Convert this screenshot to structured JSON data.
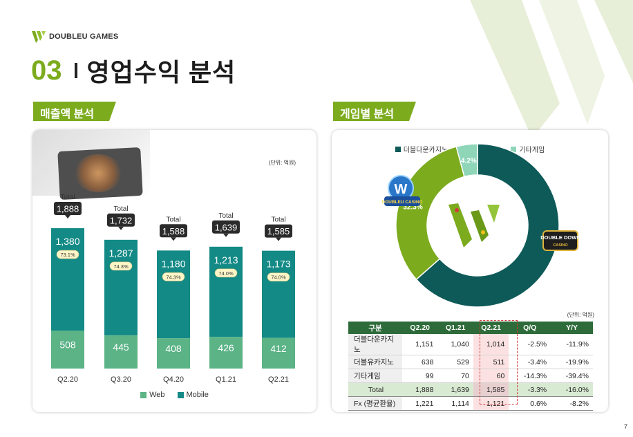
{
  "brand": {
    "name": "DOUBLEU GAMES"
  },
  "title": {
    "number": "03",
    "text": "영업수익 분석"
  },
  "left_section": {
    "tag": "매출액 분석",
    "unit": "(단위: 억원)",
    "total_label": "Total"
  },
  "right_section": {
    "tag": "게임별 분석",
    "unit": "(단위: 억원)"
  },
  "colors": {
    "accent": "#7cab1e",
    "mobile": "#138a86",
    "web": "#5bb386",
    "total_box": "#2b2b2b",
    "doubledown": "#0e5a58",
    "doubleu": "#7cab1e",
    "other": "#8fd6b9",
    "table_header": "#2e6b3a"
  },
  "chart_data": [
    {
      "type": "bar",
      "stacked": true,
      "categories": [
        "Q2.20",
        "Q3.20",
        "Q4.20",
        "Q1.21",
        "Q2.21"
      ],
      "series": [
        {
          "name": "Web",
          "values": [
            508,
            445,
            408,
            426,
            412
          ]
        },
        {
          "name": "Mobile",
          "values": [
            1380,
            1287,
            1180,
            1213,
            1173
          ]
        }
      ],
      "totals": [
        1888,
        1732,
        1588,
        1639,
        1585
      ],
      "total_labels": [
        "1,888",
        "1,732",
        "1,588",
        "1,639",
        "1,585"
      ],
      "mobile_labels": [
        "1,380",
        "1,287",
        "1,180",
        "1,213",
        "1,173"
      ],
      "web_labels": [
        "508",
        "445",
        "408",
        "426",
        "412"
      ],
      "mobile_share": [
        "73.1%",
        "74.3%",
        "74.3%",
        "74.0%",
        "74.0%"
      ],
      "legend": [
        "Web",
        "Mobile"
      ],
      "legend_position": "bottom",
      "grid": false
    },
    {
      "type": "pie",
      "donut": true,
      "labels": [
        "더블다운카지노",
        "더블유카지노",
        "기타게임"
      ],
      "values": [
        63.5,
        32.3,
        4.2
      ],
      "value_labels": [
        "63.5%",
        "32.3%",
        "4.2%"
      ],
      "legend_position": "top"
    }
  ],
  "logos": {
    "doubleu_casino": "DOUBLEU CASINO",
    "doubledown_casino": "DOUBLE DOWN CASINO"
  },
  "table": {
    "headers": [
      "구분",
      "Q2.20",
      "Q1.21",
      "Q2.21",
      "Q/Q",
      "Y/Y"
    ],
    "rows": [
      [
        "더블다운카지노",
        "1,151",
        "1,040",
        "1,014",
        "-2.5%",
        "-11.9%"
      ],
      [
        "더블유카지노",
        "638",
        "529",
        "511",
        "-3.4%",
        "-19.9%"
      ],
      [
        "기타게임",
        "99",
        "70",
        "60",
        "-14.3%",
        "-39.4%"
      ],
      [
        "Total",
        "1,888",
        "1,639",
        "1,585",
        "-3.3%",
        "-16.0%"
      ],
      [
        "Fx (평균환율)",
        "1,221",
        "1,114",
        "1,121",
        "0.6%",
        "-8.2%"
      ]
    ]
  },
  "page_number": "7"
}
